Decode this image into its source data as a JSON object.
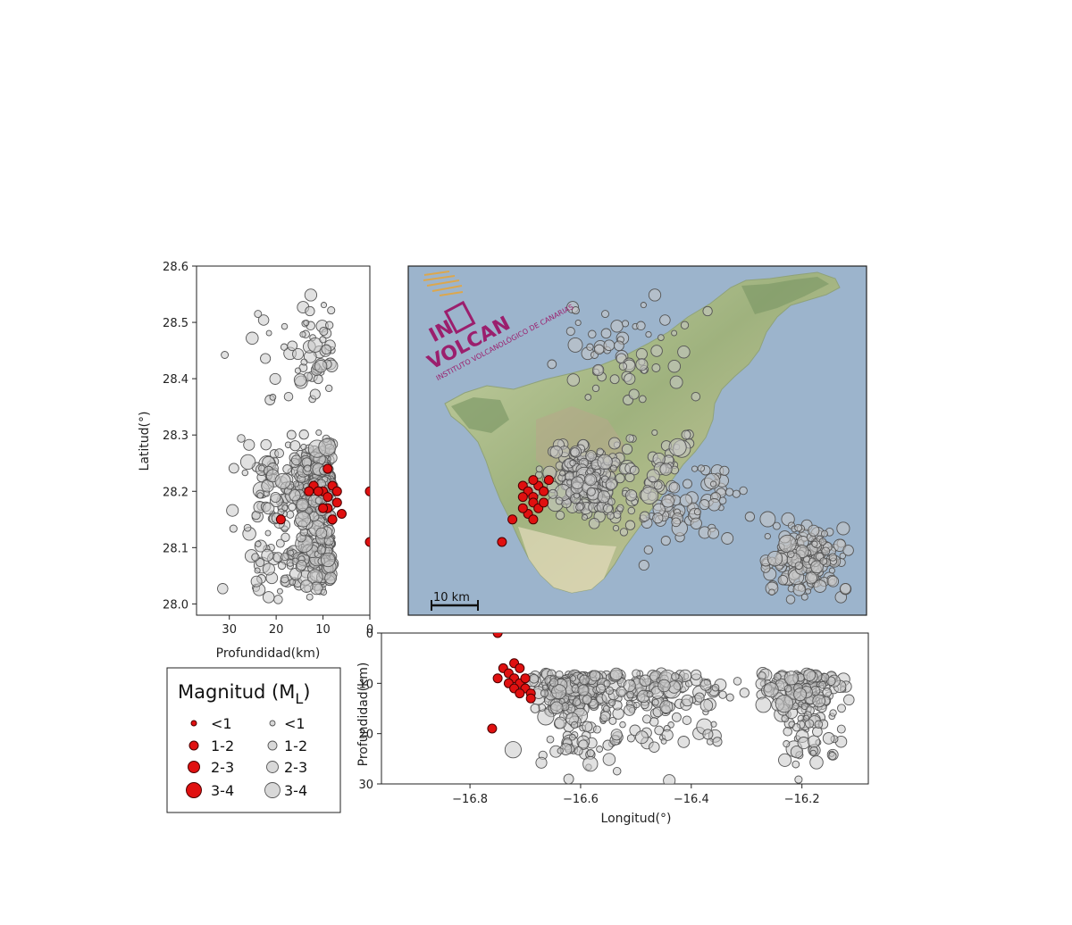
{
  "colors": {
    "sea": "#9cb4cc",
    "event_recent": "#e01010",
    "event_historic": "#c8c8c8",
    "event_edge": "#555555",
    "axis": "#222222"
  },
  "logo": {
    "line1": "IN",
    "line2": "VOLCAN",
    "line3": "INSTITUTO VOLCANOLÓGICO DE CANARIAS"
  },
  "scale_bar": {
    "label": "10 km"
  },
  "chart_data": [
    {
      "name": "depth-vs-latitude",
      "type": "scatter",
      "xlabel": "Profundidad(km)",
      "ylabel": "Latitud(°)",
      "xlim": [
        37,
        0
      ],
      "ylim": [
        27.98,
        28.6
      ],
      "xticks": [
        30,
        20,
        10,
        0
      ],
      "yticks": [
        28.0,
        28.1,
        28.2,
        28.3,
        28.4,
        28.5,
        28.6
      ],
      "ytick_labels": [
        "28.0",
        "28.1",
        "28.2",
        "28.3",
        "28.4",
        "28.5",
        "28.6"
      ],
      "series": [
        {
          "points": [
            [
              12,
              28.21
            ],
            [
              10,
              28.2
            ],
            [
              9,
              28.19
            ],
            [
              8,
              28.21
            ],
            [
              7,
              28.18
            ],
            [
              9,
              28.17
            ],
            [
              11,
              28.2
            ],
            [
              8,
              28.15
            ],
            [
              6,
              28.16
            ],
            [
              19,
              28.15
            ],
            [
              0,
              28.2
            ],
            [
              0,
              28.11
            ],
            [
              9,
              28.24
            ],
            [
              13,
              28.2
            ],
            [
              10,
              28.17
            ],
            [
              7,
              28.2
            ]
          ]
        }
      ]
    },
    {
      "name": "epicenter-map",
      "type": "scatter",
      "xlim": [
        -16.96,
        -16.08
      ],
      "ylim": [
        27.98,
        28.6
      ],
      "series": [
        {
          "points": [
            [
              -16.74,
              28.21
            ],
            [
              -16.73,
              28.2
            ],
            [
              -16.72,
              28.19
            ],
            [
              -16.71,
              28.21
            ],
            [
              -16.72,
              28.18
            ],
            [
              -16.74,
              28.19
            ],
            [
              -16.73,
              28.16
            ],
            [
              -16.72,
              28.15
            ],
            [
              -16.7,
              28.2
            ],
            [
              -16.76,
              28.15
            ],
            [
              -16.78,
              28.11
            ],
            [
              -16.69,
              28.22
            ],
            [
              -16.71,
              28.17
            ],
            [
              -16.74,
              28.17
            ],
            [
              -16.7,
              28.18
            ],
            [
              -16.72,
              28.22
            ]
          ]
        }
      ]
    },
    {
      "name": "longitude-vs-depth",
      "type": "scatter",
      "xlabel": "Longitud(°)",
      "ylabel": "Profundidad(km)",
      "xlim": [
        -16.96,
        -16.08
      ],
      "ylim": [
        30,
        0
      ],
      "xticks": [
        -16.8,
        -16.6,
        -16.4,
        -16.2
      ],
      "xtick_labels": [
        "−16.8",
        "−16.6",
        "−16.4",
        "−16.2"
      ],
      "yticks": [
        0,
        10,
        20,
        30
      ],
      "series": [
        {
          "points": [
            [
              -16.74,
              7
            ],
            [
              -16.73,
              8
            ],
            [
              -16.72,
              9
            ],
            [
              -16.71,
              10
            ],
            [
              -16.7,
              11
            ],
            [
              -16.69,
              12
            ],
            [
              -16.73,
              10
            ],
            [
              -16.72,
              6
            ],
            [
              -16.75,
              9
            ],
            [
              -16.71,
              7
            ],
            [
              -16.7,
              9
            ],
            [
              -16.76,
              19
            ],
            [
              -16.69,
              13
            ],
            [
              -16.75,
              0
            ],
            [
              -16.72,
              11
            ],
            [
              -16.71,
              12
            ]
          ]
        }
      ]
    }
  ],
  "legend": {
    "title": "Magnitud (M",
    "title_subscript": "L",
    "title_close": ")",
    "recent": [
      {
        "label": "<1",
        "r": 3
      },
      {
        "label": "1-2",
        "r": 5
      },
      {
        "label": "2-3",
        "r": 6.5
      },
      {
        "label": "3-4",
        "r": 8.5
      }
    ],
    "historic": [
      {
        "label": "<1",
        "r": 3
      },
      {
        "label": "1-2",
        "r": 5
      },
      {
        "label": "2-3",
        "r": 6.5
      },
      {
        "label": "3-4",
        "r": 8.5
      }
    ]
  }
}
